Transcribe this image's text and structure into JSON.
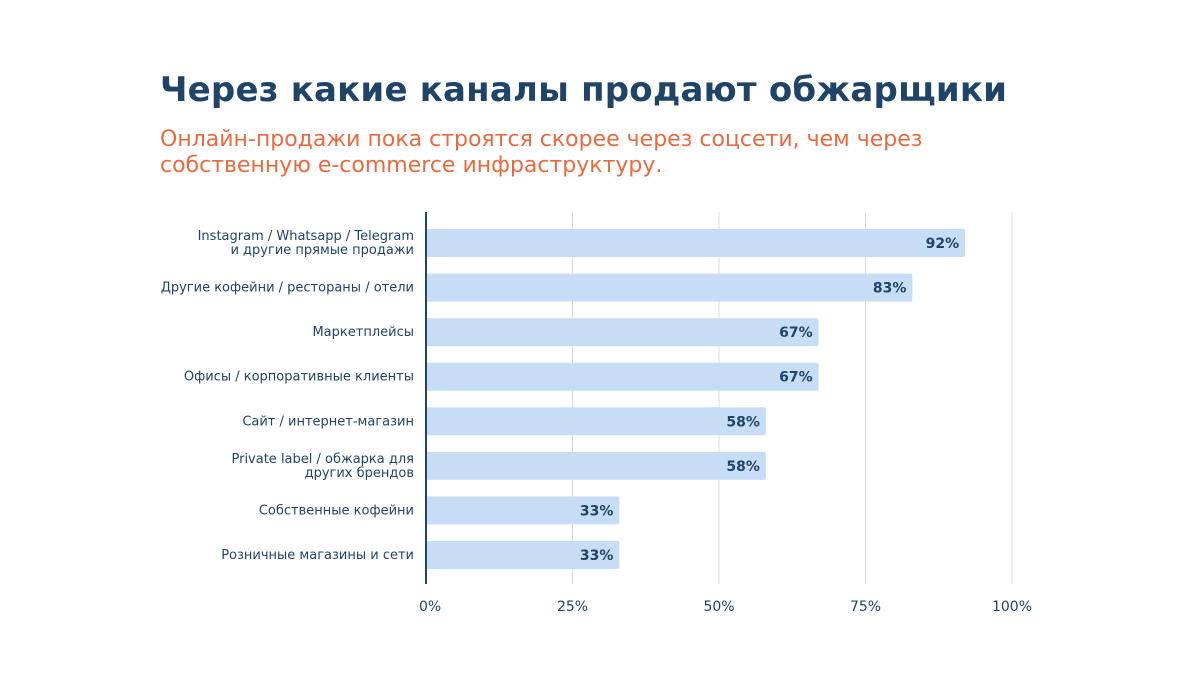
{
  "header": {
    "title": "Через какие каналы продают обжарщики",
    "subtitle": "Онлайн-продажи пока строятся скорее через соцсети, чем через собственную e-commerce инфраструктуру."
  },
  "colors": {
    "title": "#1f4468",
    "subtitle": "#ea6a3e",
    "bar": "#c7ddf5",
    "axis": "#1f4468",
    "grid": "#d9dde3"
  },
  "chart_data": {
    "type": "bar",
    "orientation": "horizontal",
    "categories": [
      [
        "Instagram / Whatsapp / Telegram",
        "и другие прямые продажи"
      ],
      [
        "Другие кофейни / рестораны / отели"
      ],
      [
        "Маркетплейсы"
      ],
      [
        "Офисы / корпоративные клиенты"
      ],
      [
        "Сайт / интернет-магазин"
      ],
      [
        "Private label / обжарка для",
        "других брендов"
      ],
      [
        "Собственные кофейни"
      ],
      [
        "Розничные магазины и сети"
      ]
    ],
    "values": [
      92,
      83,
      67,
      67,
      58,
      58,
      33,
      33
    ],
    "value_labels": [
      "92%",
      "83%",
      "67%",
      "67%",
      "58%",
      "58%",
      "33%",
      "33%"
    ],
    "xlim": [
      0,
      100
    ],
    "xticks": [
      0,
      25,
      50,
      75,
      100
    ],
    "xtick_labels": [
      "0%",
      "25%",
      "50%",
      "75%",
      "100%"
    ],
    "grid": true,
    "legend": "none"
  }
}
